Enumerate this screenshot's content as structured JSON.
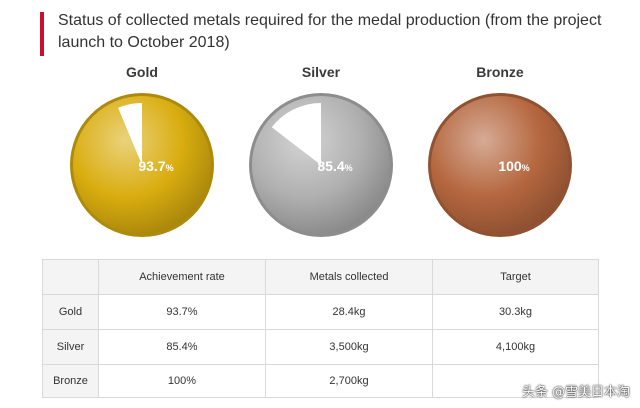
{
  "header": {
    "title": "Status of collected metals required for the medal production (from the project launch to October 2018)"
  },
  "colors": {
    "accent": "#c8102e",
    "gold": "#d9ad0f",
    "silver": "#b0b0b0",
    "bronze": "#b5673f",
    "empty_slice": "#ffffff"
  },
  "chart_data": {
    "type": "pie",
    "title": "Status of collected metals required for the medal production (from the project launch to October 2018)",
    "series": [
      {
        "name": "Gold",
        "value": 93.7,
        "label": "93.7",
        "unit": "%"
      },
      {
        "name": "Silver",
        "value": 85.4,
        "label": "85.4",
        "unit": "%"
      },
      {
        "name": "Bronze",
        "value": 100,
        "label": "100",
        "unit": "%"
      }
    ]
  },
  "table": {
    "headers": [
      "",
      "Achievement rate",
      "Metals collected",
      "Target"
    ],
    "rows": [
      [
        "Gold",
        "93.7%",
        "28.4kg",
        "30.3kg"
      ],
      [
        "Silver",
        "85.4%",
        "3,500kg",
        "4,100kg"
      ],
      [
        "Bronze",
        "100%",
        "2,700kg",
        ""
      ]
    ]
  },
  "watermark": "头条 @雪美日本淘"
}
